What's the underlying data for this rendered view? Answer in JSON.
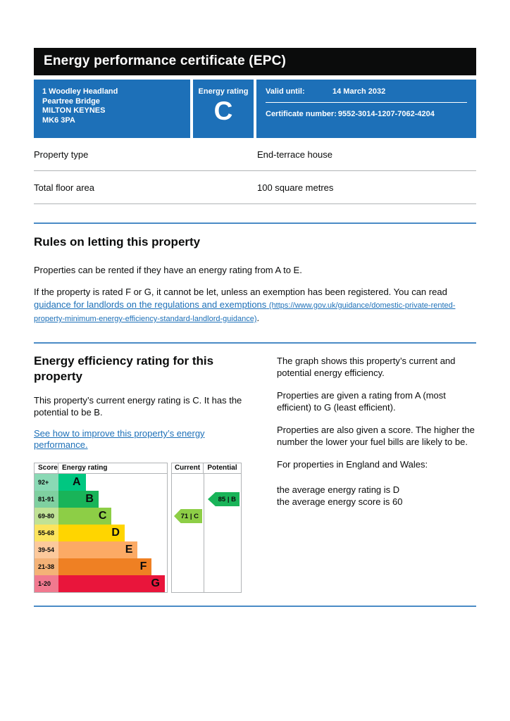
{
  "page": {
    "title": "Energy performance certificate (EPC)"
  },
  "summary": {
    "address_lines": [
      "1 Woodley Headland",
      "Peartree Bridge",
      "MILTON KEYNES",
      "MK6 3PA"
    ],
    "energy_rating_label": "Energy rating",
    "energy_rating": "C",
    "valid_until_label": "Valid until:",
    "valid_until": "14 March 2032",
    "certificate_number_label": "Certificate number:",
    "certificate_number": "9552-3014-1207-7062-4204"
  },
  "property_facts": {
    "rows": [
      {
        "label": "Property type",
        "value": "End-terrace house"
      },
      {
        "label": "Total floor area",
        "value": "100 square metres"
      }
    ]
  },
  "rules_section": {
    "heading": "Rules on letting this property",
    "paragraph1": "Properties can be rented if they have an energy rating from A to E.",
    "paragraph2_prefix": "If the property is rated F or G, it cannot be let, unless an exemption has been registered. You can read ",
    "link_text": "guidance for landlords on the regulations and exemptions",
    "link_url_text": "(https://www.gov.uk/guidance/domestic-private-rented-property-minimum-energy-efficiency-standard-landlord-guidance)",
    "paragraph2_suffix": "."
  },
  "rating_section": {
    "heading": "Energy efficiency rating for this property",
    "paragraph": "This property’s current energy rating is C. It has the potential to be B.",
    "improve_link": "See how to improve this property’s energy performance.",
    "right_paragraphs": [
      "The graph shows this property’s current and potential energy efficiency.",
      "Properties are given a rating from A (most efficient) to G (least efficient).",
      "Properties are also given a score. The higher the number the lower your fuel bills are likely to be.",
      "For properties in England and Wales:"
    ],
    "average_lines": [
      "the average energy rating is D",
      "the average energy score is 60"
    ]
  },
  "chart_data": {
    "type": "bar",
    "title": "Energy efficiency rating chart",
    "columns": [
      "Score",
      "Energy rating",
      "Current",
      "Potential"
    ],
    "bands": [
      {
        "label": "A",
        "score_range": "92+",
        "color": "#00c781",
        "tint": "#8ad9b5",
        "width_pct": 25
      },
      {
        "label": "B",
        "score_range": "81-91",
        "color": "#19b459",
        "tint": "#7fd0a0",
        "width_pct": 37
      },
      {
        "label": "C",
        "score_range": "69-80",
        "color": "#8dce46",
        "tint": "#c0e295",
        "width_pct": 49
      },
      {
        "label": "D",
        "score_range": "55-68",
        "color": "#ffd500",
        "tint": "#fbe45e",
        "width_pct": 61
      },
      {
        "label": "E",
        "score_range": "39-54",
        "color": "#fcaa65",
        "tint": "#fcc99c",
        "width_pct": 73
      },
      {
        "label": "F",
        "score_range": "21-38",
        "color": "#ef8023",
        "tint": "#f4b277",
        "width_pct": 86
      },
      {
        "label": "G",
        "score_range": "1-20",
        "color": "#e9153b",
        "tint": "#f1798f",
        "width_pct": 98
      }
    ],
    "current": {
      "score": 71,
      "band": "C",
      "arrow_label": "71 | C",
      "color": "#8dce46",
      "row_index": 2
    },
    "potential": {
      "score": 85,
      "band": "B",
      "arrow_label": "85 | B",
      "color": "#19b459",
      "row_index": 1
    }
  },
  "colors": {
    "brand_blue": "#1d70b8",
    "divider_blue": "#4a8bc6",
    "divider_grey": "#b1b4b6",
    "header_black": "#0b0c0c"
  }
}
